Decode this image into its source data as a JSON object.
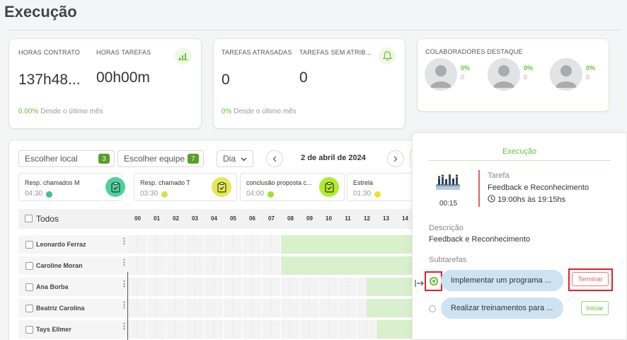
{
  "page": {
    "title": "Execução"
  },
  "cards": {
    "contract": {
      "hours_contract_label": "HORAS CONTRATO",
      "hours_contract_value": "137h48...",
      "hours_tasks_label": "HORAS TAREFAS",
      "hours_tasks_value": "00h00m",
      "change_pct": "0.00%",
      "change_text": "Desde o último mês",
      "icon": "bar-chart-icon"
    },
    "tasks": {
      "late_label": "TAREFAS ATRASADAS",
      "late_value": "0",
      "unassigned_label": "TAREFAS SEM ATRIB...",
      "unassigned_value": "0",
      "change_pct": "0%",
      "change_text": "Desde o último mês",
      "icon": "bell-icon"
    },
    "collaborators": {
      "label": "COLABORADORES DESTAQUE",
      "items": [
        {
          "pct": "0%",
          "count": "0"
        },
        {
          "pct": "0%",
          "count": "0"
        },
        {
          "pct": "0%",
          "count": "0"
        }
      ]
    }
  },
  "toolbar": {
    "local_label": "Escolher local",
    "local_badge": "3",
    "team_label": "Escolher equipe",
    "team_badge": "7",
    "period_label": "Dia",
    "date_label": "2 de abril de 2024"
  },
  "task_cards": [
    {
      "name": "Resp. chamados M",
      "time": "04:30",
      "dot_color": "#3cc38a",
      "icon_bg": "#4fd19c"
    },
    {
      "name": "Resp. chamado T",
      "time": "03:30",
      "dot_color": "#d9e04a",
      "icon_bg": "#e3e85a"
    },
    {
      "name": "conclusão proposta c...",
      "time": "04:00",
      "dot_color": "#a5e02c",
      "icon_bg": "#b2ea2f"
    },
    {
      "name": "Estrela",
      "time": "01:30",
      "dot_color": "#e8e820",
      "icon_bg": "#eeee30"
    }
  ],
  "grid": {
    "all_label": "Todos",
    "hours": [
      "00",
      "01",
      "02",
      "03",
      "04",
      "05",
      "06",
      "07",
      "08",
      "09",
      "10",
      "11",
      "12",
      "13",
      "14"
    ],
    "rows": [
      {
        "name": "Leonardo Ferraz",
        "fill_from": 8
      },
      {
        "name": "Caroline Moran",
        "fill_from": 8
      },
      {
        "name": "Ana Borba",
        "fill_from": 12.5
      },
      {
        "name": "Beatriz Carolina",
        "fill_from": 12.5
      },
      {
        "name": "Tays Ellmer",
        "fill_from": 13
      }
    ]
  },
  "panel": {
    "title": "Execução",
    "duration": "00:15",
    "task_label": "Tarefa",
    "task_name": "Feedback e Reconhecimento",
    "task_time": "19:00hs às 19:15hs",
    "description_label": "Descrição",
    "description_value": "Feedback e Reconhecimento",
    "subtasks_label": "Subtarefas",
    "subtasks": [
      {
        "name": "Implementar um programa ...",
        "action": "Terminar",
        "active": true
      },
      {
        "name": "Realizar treinamentos para ...",
        "action": "Iniciar",
        "active": false
      }
    ]
  },
  "colors": {
    "accent": "#6abf3a",
    "dark_accent": "#5a9e2a",
    "highlight": "#e0202a",
    "pill": "#cde3f2",
    "grid_fill": "#d9f0cc"
  }
}
